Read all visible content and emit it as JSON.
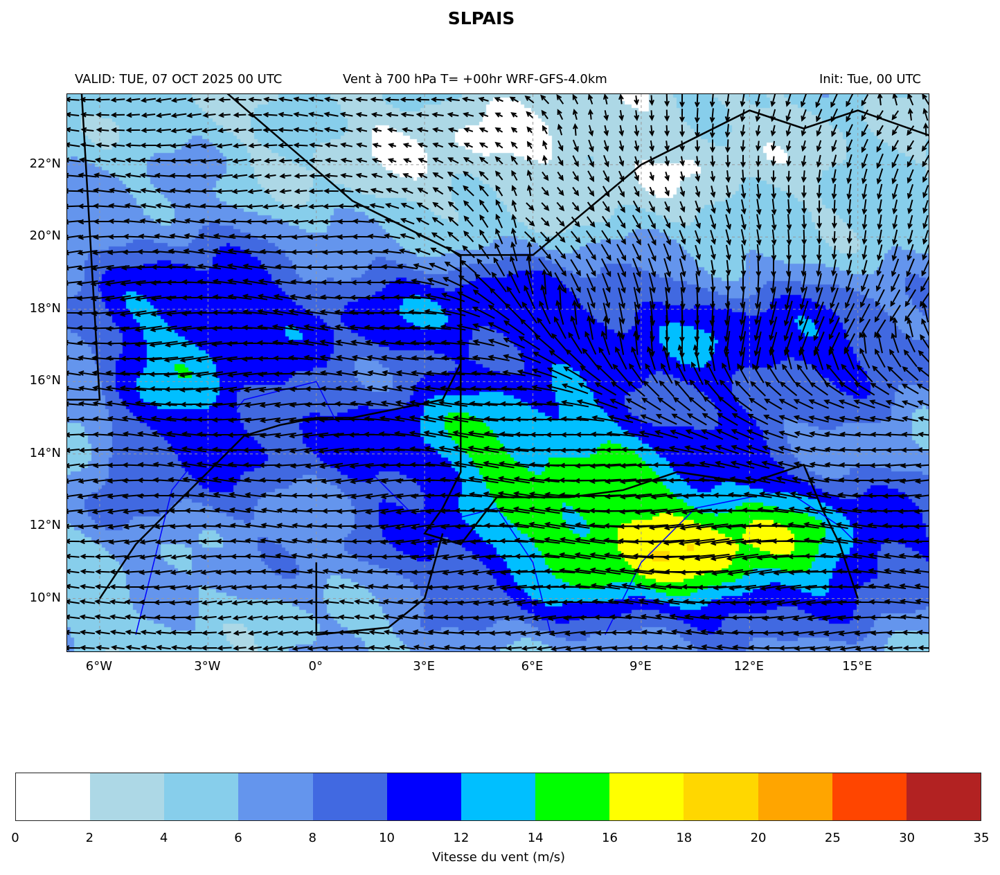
{
  "title": "SLPAIS",
  "header": {
    "valid": "VALID: TUE, 07 OCT 2025 00 UTC",
    "field": "Vent à 700 hPa T= +00hr  WRF-GFS-4.0km",
    "init": "Init: Tue, 00 UTC"
  },
  "map": {
    "lon_range": [
      -6.9,
      17.0
    ],
    "lat_range": [
      8.5,
      23.95
    ],
    "gridlines": true,
    "lon_ticks": [
      {
        "v": -6,
        "label": "6°W"
      },
      {
        "v": -3,
        "label": "3°W"
      },
      {
        "v": 0,
        "label": "0°"
      },
      {
        "v": 3,
        "label": "3°E"
      },
      {
        "v": 6,
        "label": "6°E"
      },
      {
        "v": 9,
        "label": "9°E"
      },
      {
        "v": 12,
        "label": "12°E"
      },
      {
        "v": 15,
        "label": "15°E"
      }
    ],
    "lat_ticks": [
      {
        "v": 22,
        "label": "22°N"
      },
      {
        "v": 20,
        "label": "20°N"
      },
      {
        "v": 18,
        "label": "18°N"
      },
      {
        "v": 16,
        "label": "16°N"
      },
      {
        "v": 14,
        "label": "14°N"
      },
      {
        "v": 12,
        "label": "12°N"
      },
      {
        "v": 10,
        "label": "10°N"
      }
    ],
    "vector_color": "#000000",
    "border_color": "#000000",
    "river_color": "#0000ff"
  },
  "colorbar": {
    "label": "Vitesse du vent (m/s)",
    "levels": [
      "0",
      "2",
      "4",
      "6",
      "8",
      "10",
      "12",
      "14",
      "16",
      "18",
      "20",
      "25",
      "30",
      "35"
    ],
    "level_values": [
      0,
      2,
      4,
      6,
      8,
      10,
      12,
      14,
      16,
      18,
      20,
      25,
      30,
      35
    ],
    "colors": [
      "#ffffff",
      "#add8e6",
      "#87ceeb",
      "#6495ed",
      "#4169e1",
      "#0000ff",
      "#00bfff",
      "#00ff00",
      "#ffff00",
      "#ffd700",
      "#ffa500",
      "#ff4500",
      "#b22222"
    ]
  }
}
